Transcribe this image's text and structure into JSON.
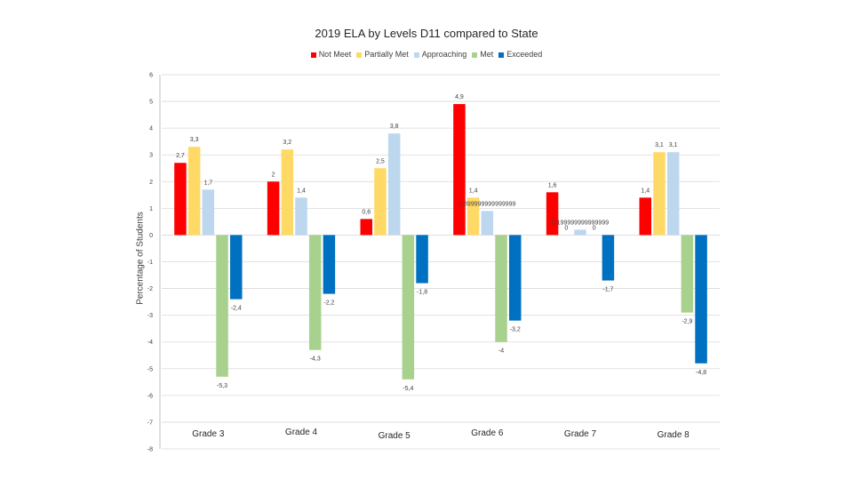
{
  "chart_data": {
    "type": "bar",
    "title": "2019 ELA by Levels D11 compared to State",
    "xlabel": "",
    "ylabel": "Percentage of Students",
    "ylim": [
      -8,
      6
    ],
    "yticks": [
      6,
      5,
      4,
      3,
      2,
      1,
      0,
      -1,
      -2,
      -3,
      -4,
      -5,
      -6,
      -7,
      -8
    ],
    "grid": true,
    "legend_position": "top",
    "categories": [
      "Grade 3",
      "Grade 4",
      "Grade 5",
      "Grade 6",
      "Grade 7",
      "Grade 8"
    ],
    "series": [
      {
        "name": "Not Meet",
        "color": "#ff0000",
        "values": [
          2.7,
          2.0,
          0.6,
          4.9,
          1.6,
          1.4
        ],
        "labels": [
          "2,7",
          "2",
          "0,6",
          "4,9",
          "1,6",
          "1,4"
        ]
      },
      {
        "name": "Partially Met",
        "color": "#ffd966",
        "values": [
          3.3,
          3.2,
          2.5,
          1.4,
          0.0,
          3.1
        ],
        "labels": [
          "3,3",
          "3,2",
          "2,5",
          "1,4",
          "0",
          "3,1"
        ]
      },
      {
        "name": "Approaching",
        "color": "#bdd7ee",
        "values": [
          1.7,
          1.4,
          3.8,
          0.9,
          0.2,
          3.1
        ],
        "labels": [
          "1,7",
          "1,4",
          "3,8",
          "0,899999999999999",
          "0,199999999999999",
          "3,1"
        ]
      },
      {
        "name": "Met",
        "color": "#a9d18e",
        "values": [
          -5.3,
          -4.3,
          -5.4,
          -4.0,
          0.0,
          -2.9
        ],
        "labels": [
          "-5,3",
          "-4,3",
          "-5,4",
          "-4",
          "0",
          "-2,9"
        ]
      },
      {
        "name": "Exceeded",
        "color": "#0070c0",
        "values": [
          -2.4,
          -2.2,
          -1.8,
          -3.2,
          -1.7,
          -4.8
        ],
        "labels": [
          "-2,4",
          "-2,2",
          "-1,8",
          "-3,2",
          "-1,7",
          "-4,8"
        ]
      }
    ]
  }
}
